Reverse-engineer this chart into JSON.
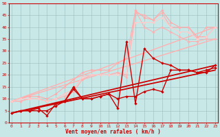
{
  "background_color": "#c8e8e8",
  "grid_color": "#9bbcbc",
  "xlabel": "Vent moyen/en rafales ( km/h )",
  "xlim_min": -0.3,
  "xlim_max": 23.3,
  "ylim_min": 0,
  "ylim_max": 50,
  "xticks": [
    0,
    1,
    2,
    3,
    4,
    5,
    6,
    7,
    8,
    9,
    10,
    11,
    12,
    13,
    14,
    15,
    16,
    17,
    18,
    19,
    20,
    21,
    22,
    23
  ],
  "yticks": [
    0,
    5,
    10,
    15,
    20,
    25,
    30,
    35,
    40,
    45,
    50
  ],
  "series": [
    {
      "x": [
        0,
        23
      ],
      "y": [
        9,
        40
      ],
      "color": "#ffb0b0",
      "lw": 1.0,
      "marker": null,
      "ms": 0
    },
    {
      "x": [
        0,
        23
      ],
      "y": [
        9,
        35
      ],
      "color": "#ffb0b0",
      "lw": 1.0,
      "marker": null,
      "ms": 0
    },
    {
      "x": [
        0,
        1,
        2,
        3,
        4,
        5,
        6,
        7,
        8,
        9,
        10,
        11,
        12,
        13,
        14,
        15,
        16,
        17,
        18,
        19,
        20,
        21,
        22,
        23
      ],
      "y": [
        9,
        10,
        11,
        11,
        10,
        12,
        15,
        18,
        21,
        22,
        22,
        22,
        25,
        27,
        47,
        44,
        43,
        47,
        42,
        40,
        40,
        36,
        36,
        40
      ],
      "color": "#ffaaaa",
      "lw": 0.8,
      "marker": "D",
      "ms": 1.8
    },
    {
      "x": [
        0,
        1,
        2,
        3,
        4,
        5,
        6,
        7,
        8,
        9,
        10,
        11,
        12,
        13,
        14,
        15,
        16,
        17,
        18,
        19,
        20,
        21,
        22,
        23
      ],
      "y": [
        9,
        9,
        10,
        10,
        9,
        10,
        12,
        14,
        19,
        20,
        20,
        20,
        21,
        20,
        46,
        45,
        43,
        46,
        40,
        40,
        40,
        35,
        40,
        40
      ],
      "color": "#ffb0b0",
      "lw": 0.8,
      "marker": "D",
      "ms": 1.8
    },
    {
      "x": [
        0,
        1,
        2,
        3,
        4,
        5,
        6,
        7,
        8,
        9,
        10,
        11,
        12,
        13,
        14,
        15,
        16,
        17,
        18,
        19,
        20,
        21,
        22,
        23
      ],
      "y": [
        9,
        9,
        10,
        10,
        9,
        10,
        11,
        13,
        18,
        20,
        20,
        20,
        21,
        19,
        47,
        40,
        38,
        40,
        38,
        36,
        34,
        34,
        35,
        35
      ],
      "color": "#ffb0b0",
      "lw": 0.8,
      "marker": "D",
      "ms": 1.8
    },
    {
      "x": [
        0,
        1,
        2,
        3,
        4,
        5,
        6,
        7,
        8,
        9,
        10,
        11,
        12,
        13,
        14,
        15,
        16,
        17,
        18,
        19,
        20,
        21,
        22,
        23
      ],
      "y": [
        9,
        10,
        10,
        10,
        9,
        10,
        12,
        14,
        19,
        20,
        20,
        20,
        20,
        21,
        42,
        42,
        42,
        44,
        40,
        38,
        38,
        35,
        36,
        40
      ],
      "color": "#ffcccc",
      "lw": 0.8,
      "marker": "D",
      "ms": 1.8
    },
    {
      "x": [
        0,
        23
      ],
      "y": [
        4,
        24
      ],
      "color": "#cc0000",
      "lw": 1.3,
      "marker": null,
      "ms": 0
    },
    {
      "x": [
        0,
        23
      ],
      "y": [
        4,
        22
      ],
      "color": "#cc0000",
      "lw": 1.3,
      "marker": null,
      "ms": 0
    },
    {
      "x": [
        0,
        1,
        2,
        3,
        4,
        5,
        6,
        7,
        8,
        9,
        10,
        11,
        12,
        13,
        14,
        15,
        16,
        17,
        18,
        19,
        20,
        21,
        22,
        23
      ],
      "y": [
        4,
        5,
        5,
        5,
        5,
        7,
        9,
        15,
        10,
        10,
        11,
        12,
        6,
        34,
        8,
        31,
        27,
        25,
        24,
        22,
        22,
        21,
        21,
        24
      ],
      "color": "#cc0000",
      "lw": 1.0,
      "marker": "D",
      "ms": 2.0
    },
    {
      "x": [
        0,
        1,
        2,
        3,
        4,
        5,
        6,
        7,
        8,
        9,
        10,
        11,
        12,
        13,
        14,
        15,
        16,
        17,
        18,
        19,
        20,
        21,
        22,
        23
      ],
      "y": [
        4,
        5,
        5,
        6,
        3,
        8,
        9,
        14,
        10,
        10,
        11,
        12,
        10,
        11,
        11,
        13,
        14,
        13,
        22,
        22,
        22,
        21,
        22,
        23
      ],
      "color": "#cc0000",
      "lw": 1.0,
      "marker": "D",
      "ms": 2.0
    }
  ],
  "axis_color": "#cc0000",
  "tick_fontsize": 4.5,
  "xlabel_fontsize": 5.5
}
